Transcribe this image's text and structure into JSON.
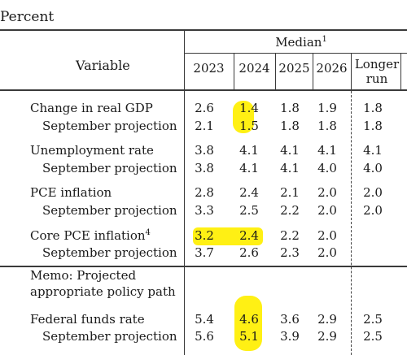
{
  "unit_label": "Percent",
  "header": {
    "variable": "Variable",
    "median": "Median",
    "median_note": "1",
    "years": [
      "2023",
      "2024",
      "2025",
      "2026"
    ],
    "longer_run_line1": "Longer",
    "longer_run_line2": "run"
  },
  "rows": [
    {
      "label": "Change in real GDP",
      "values": [
        "2.6",
        "1.4",
        "1.8",
        "1.9",
        "1.8"
      ]
    },
    {
      "label": "September projection",
      "values": [
        "2.1",
        "1.5",
        "1.8",
        "1.8",
        "1.8"
      ]
    },
    {
      "label": "Unemployment rate",
      "values": [
        "3.8",
        "4.1",
        "4.1",
        "4.1",
        "4.1"
      ]
    },
    {
      "label": "September projection",
      "values": [
        "3.8",
        "4.1",
        "4.1",
        "4.0",
        "4.0"
      ]
    },
    {
      "label": "PCE inflation",
      "values": [
        "2.8",
        "2.4",
        "2.1",
        "2.0",
        "2.0"
      ]
    },
    {
      "label": "September projection",
      "values": [
        "3.3",
        "2.5",
        "2.2",
        "2.0",
        "2.0"
      ]
    },
    {
      "label": "Core PCE inflation",
      "note": "4",
      "values": [
        "3.2",
        "2.4",
        "2.2",
        "2.0",
        ""
      ]
    },
    {
      "label": "September projection",
      "values": [
        "3.7",
        "2.6",
        "2.3",
        "2.0",
        ""
      ]
    },
    {
      "label": "Federal funds rate",
      "values": [
        "5.4",
        "4.6",
        "3.6",
        "2.9",
        "2.5"
      ]
    },
    {
      "label": "September projection",
      "values": [
        "5.6",
        "5.1",
        "3.9",
        "2.9",
        "2.5"
      ]
    }
  ],
  "memo": {
    "line1": "Memo: Projected",
    "line2": "appropriate policy path"
  },
  "highlight_color": "#ffef00"
}
